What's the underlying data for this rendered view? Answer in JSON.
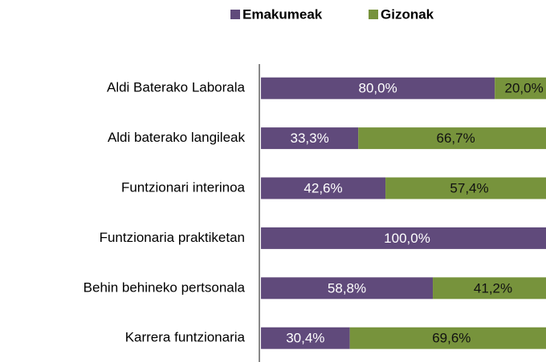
{
  "chart_data": {
    "type": "bar",
    "orientation": "horizontal",
    "stacked": true,
    "categories": [
      "Aldi Baterako Laborala",
      "Aldi baterako langileak",
      "Funtzionari interinoa",
      "Funtzionaria praktiketan",
      "Behin behineko pertsonala",
      "Karrera funtzionaria"
    ],
    "series": [
      {
        "name": "Emakumeak",
        "color": "#604a7b",
        "label_color": "#ffffff",
        "values": [
          80.0,
          33.3,
          42.6,
          100.0,
          58.8,
          30.4
        ],
        "value_labels": [
          "80,0%",
          "33,3%",
          "42,6%",
          "100,0%",
          "58,8%",
          "30,4%"
        ]
      },
      {
        "name": "Gizonak",
        "color": "#77933c",
        "label_color": "#111111",
        "values": [
          20.0,
          66.7,
          57.4,
          0,
          41.2,
          69.6
        ],
        "value_labels": [
          "20,0%",
          "66,7%",
          "57,4%",
          null,
          "41,2%",
          "69,6%"
        ]
      }
    ],
    "xlim": [
      0,
      100
    ],
    "legend": "top"
  }
}
